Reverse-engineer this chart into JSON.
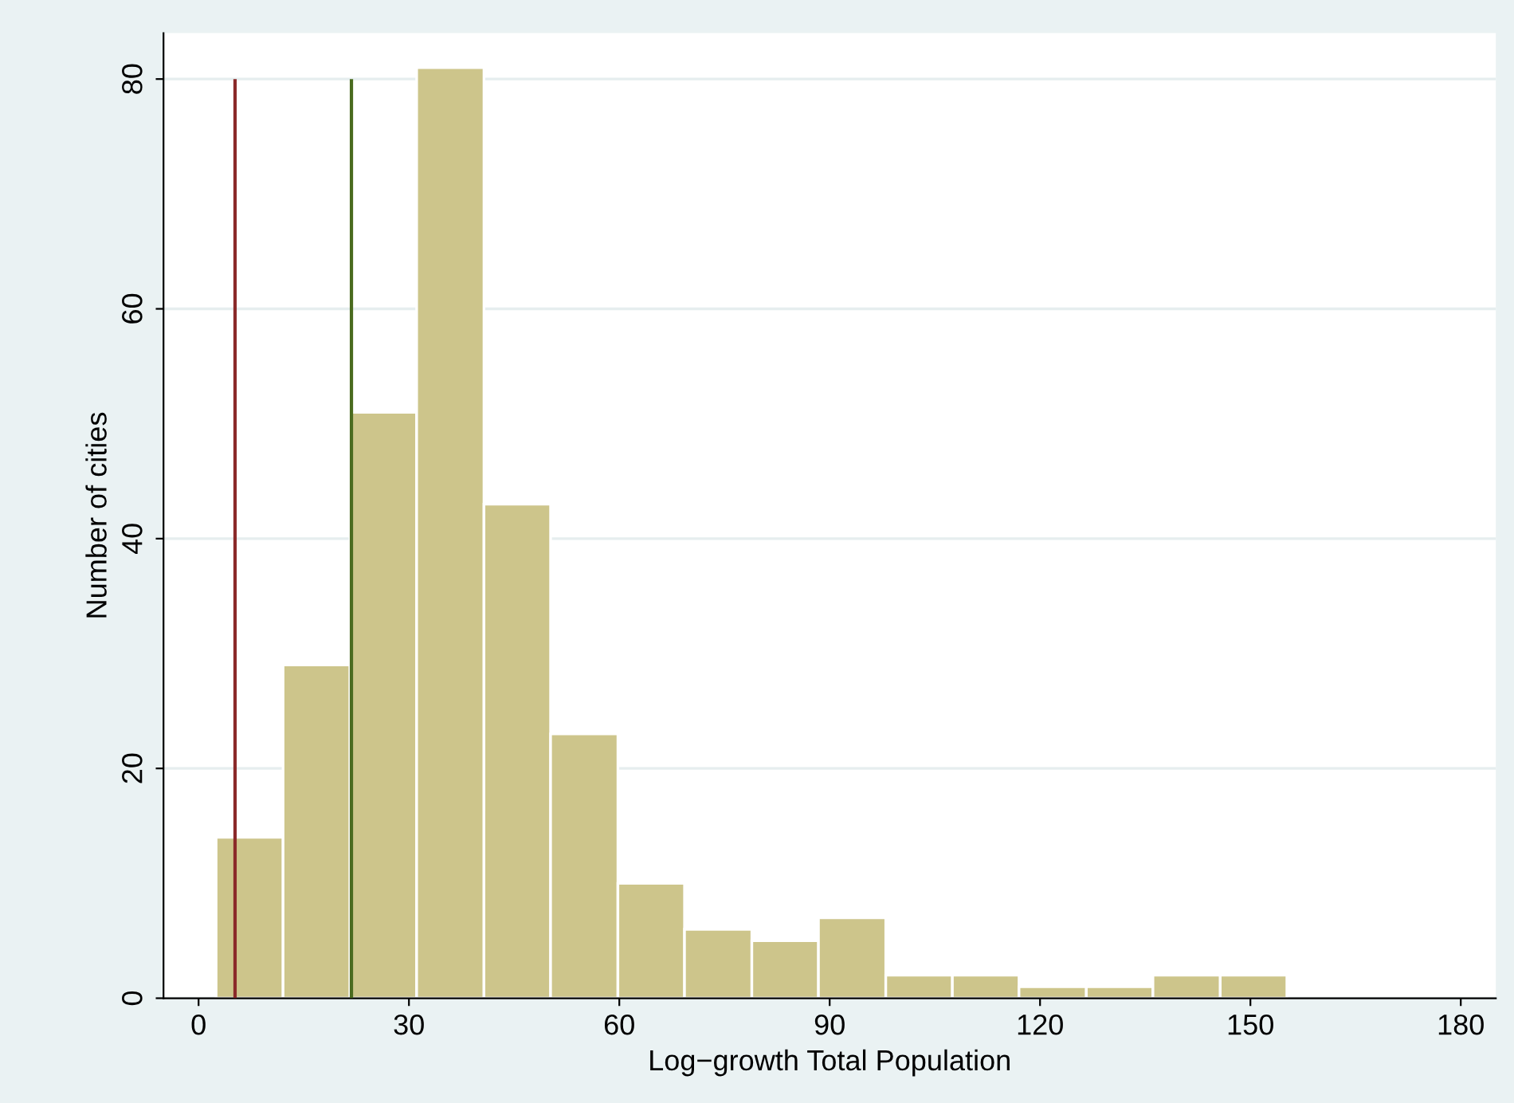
{
  "chart_data": {
    "type": "histogram",
    "xlabel": "Log−growth Total Population",
    "ylabel": "Number of cities",
    "bins": [
      2.5,
      12.05,
      21.6,
      31.1,
      40.7,
      50.2,
      59.8,
      69.3,
      78.9,
      88.4,
      98.0,
      107.5,
      117.0,
      126.6,
      136.1,
      145.7,
      155.2
    ],
    "values": [
      14,
      29,
      51,
      81,
      43,
      23,
      10,
      6,
      5,
      7,
      2,
      2,
      1,
      1,
      2,
      2
    ],
    "color": "#cdc58b",
    "xlim": [
      -5,
      185
    ],
    "xticks": [
      0,
      30,
      60,
      90,
      120,
      150,
      180
    ],
    "ylim": [
      0,
      84
    ],
    "yticks": [
      0,
      20,
      40,
      60,
      80
    ],
    "grid": "y",
    "ref_lines": [
      {
        "axis": "x",
        "value": 5.2,
        "color": "#8b2a2a"
      },
      {
        "axis": "x",
        "value": 21.8,
        "color": "#4a6b1f"
      }
    ]
  }
}
